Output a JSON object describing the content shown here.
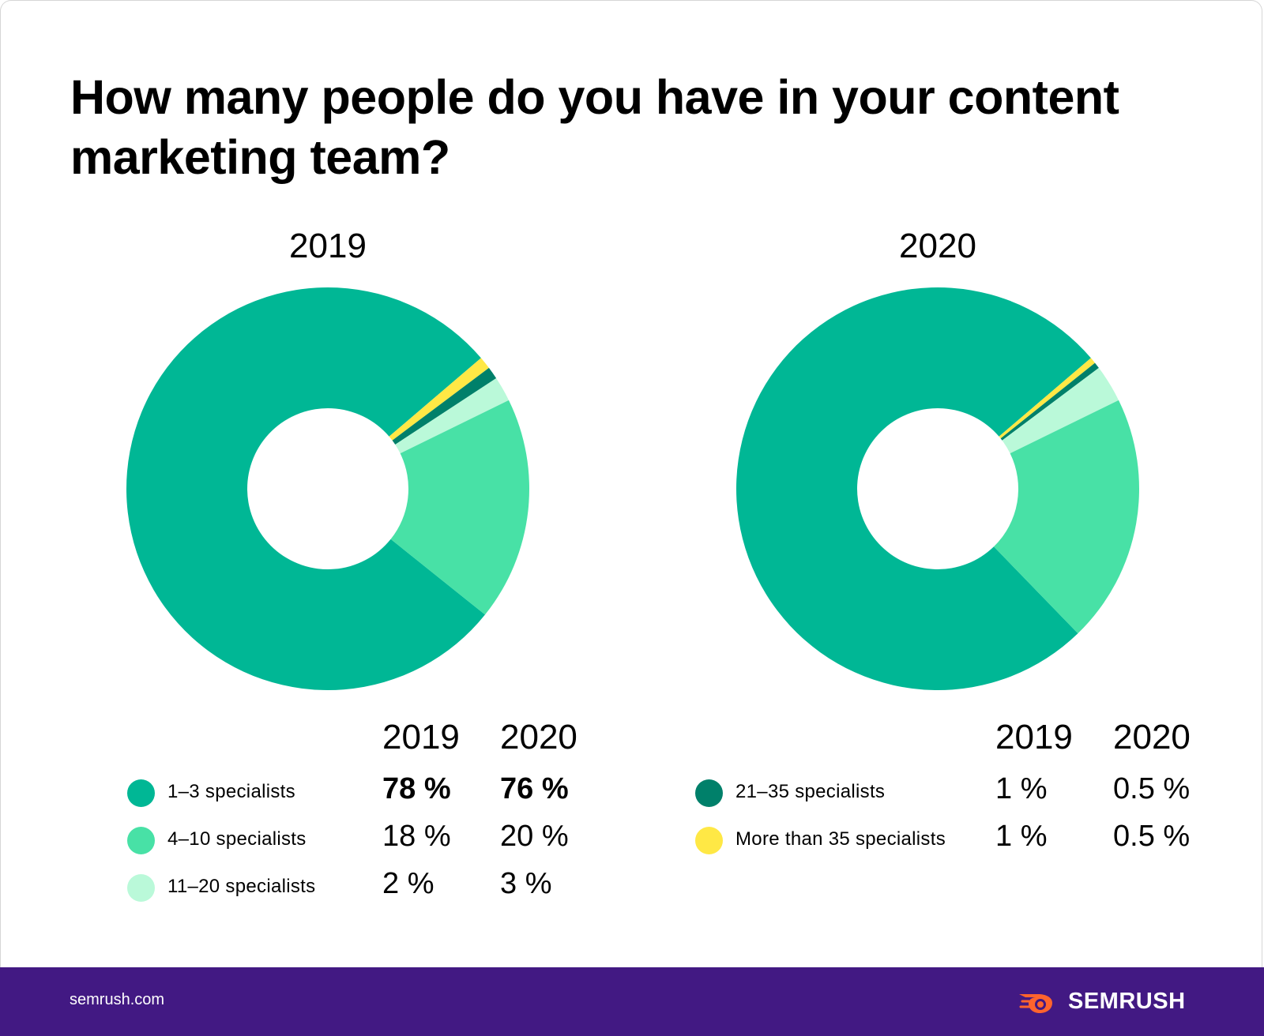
{
  "title": "How many people do you have in your content marketing team?",
  "chart_data": {
    "type": "pie",
    "variant": "donut",
    "charts": [
      {
        "title": "2019",
        "slices": [
          {
            "label": "1–3 specialists",
            "value": 78,
            "color": "#00b795"
          },
          {
            "label": "4–10 specialists",
            "value": 18,
            "color": "#48e1a6"
          },
          {
            "label": "11–20 specialists",
            "value": 2,
            "color": "#baf9d9"
          },
          {
            "label": "21–35 specialists",
            "value": 1,
            "color": "#00806a"
          },
          {
            "label": "More than 35 specialists",
            "value": 1,
            "color": "#ffe845"
          }
        ]
      },
      {
        "title": "2020",
        "slices": [
          {
            "label": "1–3 specialists",
            "value": 76,
            "color": "#00b795"
          },
          {
            "label": "4–10 specialists",
            "value": 20,
            "color": "#48e1a6"
          },
          {
            "label": "11–20 specialists",
            "value": 3,
            "color": "#baf9d9"
          },
          {
            "label": "21–35 specialists",
            "value": 0.5,
            "color": "#00806a"
          },
          {
            "label": "More than 35 specialists",
            "value": 0.5,
            "color": "#ffe845"
          }
        ]
      }
    ]
  },
  "legend": {
    "year_a": "2019",
    "year_b": "2020",
    "left_rows": [
      {
        "label": "1–3 specialists",
        "v2019": "78 %",
        "v2020": "76 %",
        "color": "#00b795",
        "bold": true
      },
      {
        "label": "4–10 specialists",
        "v2019": "18 %",
        "v2020": "20 %",
        "color": "#48e1a6",
        "bold": false
      },
      {
        "label": "11–20 specialists",
        "v2019": "2 %",
        "v2020": "3 %",
        "color": "#baf9d9",
        "bold": false
      }
    ],
    "right_rows": [
      {
        "label": "21–35 specialists",
        "v2019": "1 %",
        "v2020": "0.5 %",
        "color": "#00806a",
        "bold": false
      },
      {
        "label": "More than 35 specialists",
        "v2019": "1 %",
        "v2020": "0.5 %",
        "color": "#ffe845",
        "bold": false
      }
    ]
  },
  "footer": {
    "url": "semrush.com",
    "brand": "SEMRUSH",
    "brand_color": "#ff642d",
    "background": "#421983"
  }
}
